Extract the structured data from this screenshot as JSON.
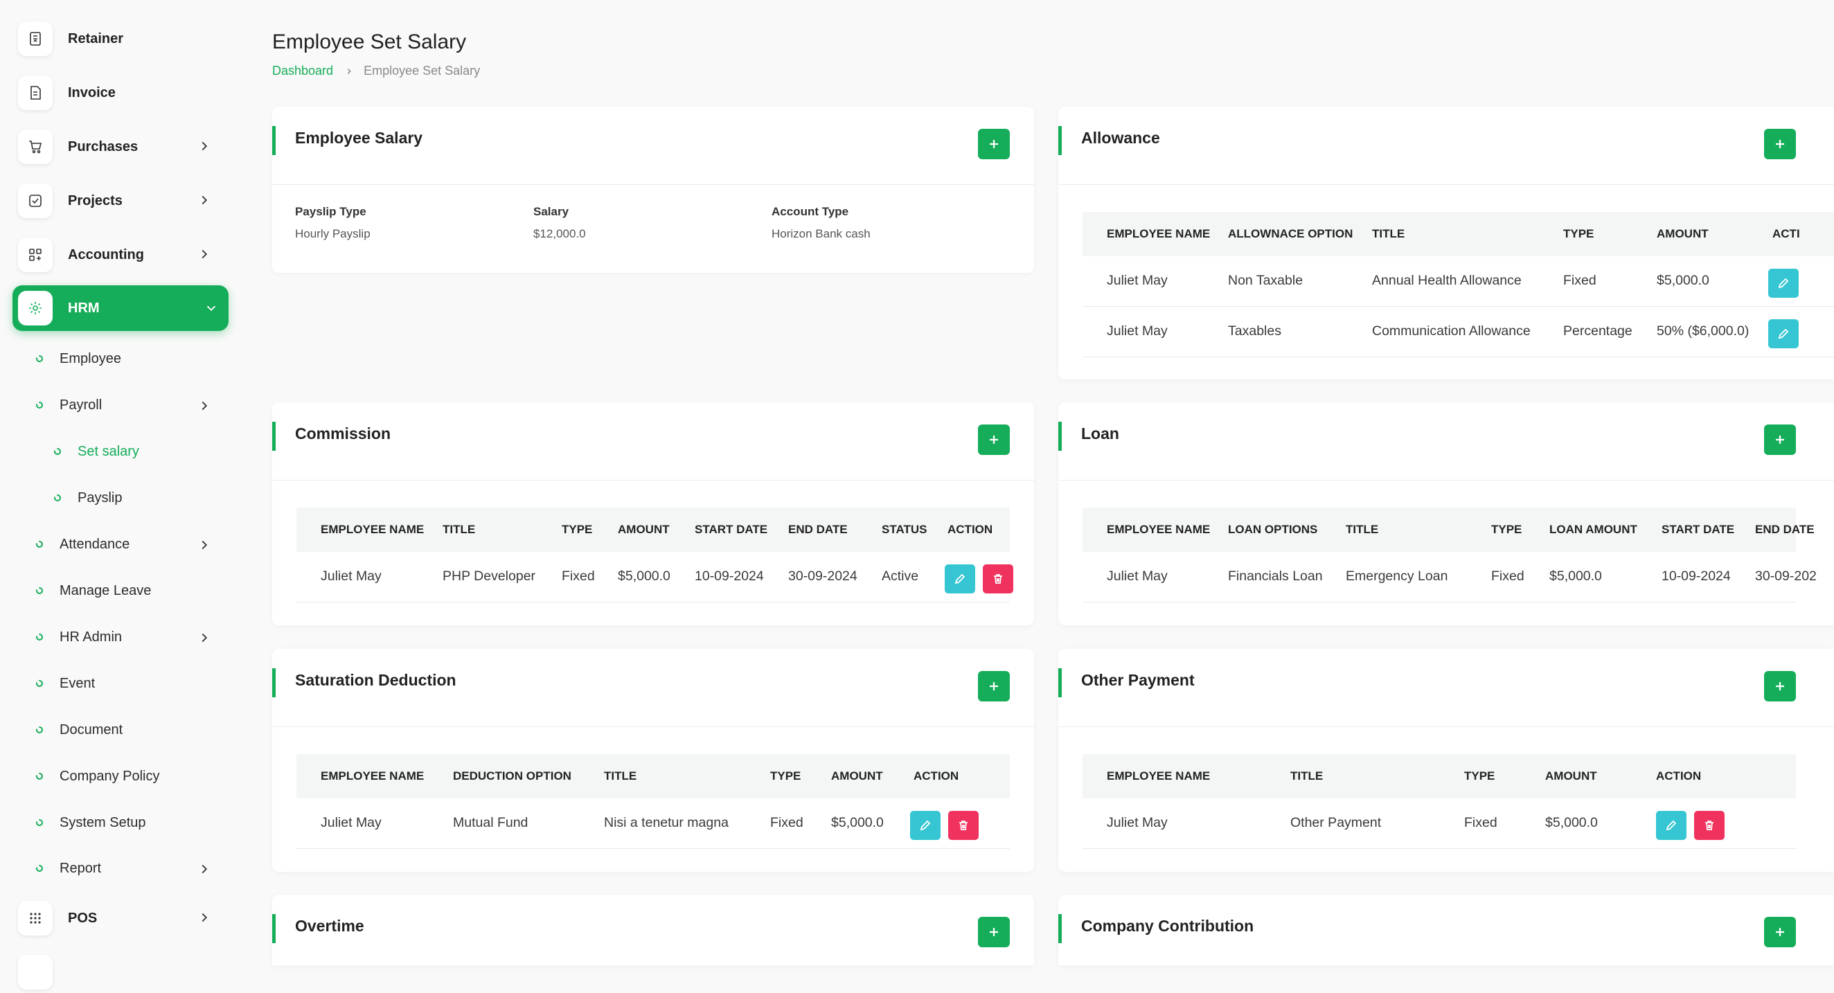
{
  "sidebar": {
    "retainer": "Retainer",
    "invoice": "Invoice",
    "purchases": "Purchases",
    "projects": "Projects",
    "accounting": "Accounting",
    "hrm": "HRM",
    "employee": "Employee",
    "payroll": "Payroll",
    "set_salary": "Set salary",
    "payslip": "Payslip",
    "attendance": "Attendance",
    "manage_leave": "Manage Leave",
    "hr_admin": "HR Admin",
    "event": "Event",
    "document": "Document",
    "company_policy": "Company Policy",
    "system_setup": "System Setup",
    "report": "Report",
    "pos": "POS"
  },
  "header": {
    "title": "Employee Set Salary",
    "breadcrumb_home": "Dashboard",
    "breadcrumb_current": "Employee Set Salary"
  },
  "employee_salary": {
    "title": "Employee Salary",
    "payslip_type_label": "Payslip Type",
    "payslip_type_value": "Hourly Payslip",
    "salary_label": "Salary",
    "salary_value": "$12,000.0",
    "account_type_label": "Account Type",
    "account_type_value": "Horizon Bank cash"
  },
  "allowance": {
    "title": "Allowance",
    "headers": [
      "EMPLOYEE NAME",
      "ALLOWNACE OPTION",
      "TITLE",
      "TYPE",
      "AMOUNT",
      "ACTI"
    ],
    "rows": [
      [
        "Juliet May",
        "Non Taxable",
        "Annual Health Allowance",
        "Fixed",
        "$5,000.0"
      ],
      [
        "Juliet May",
        "Taxables",
        "Communication Allowance",
        "Percentage",
        "50% ($6,000.0)"
      ]
    ]
  },
  "commission": {
    "title": "Commission",
    "headers": [
      "EMPLOYEE NAME",
      "TITLE",
      "TYPE",
      "AMOUNT",
      "START DATE",
      "END DATE",
      "STATUS",
      "ACTION"
    ],
    "rows": [
      [
        "Juliet May",
        "PHP Developer",
        "Fixed",
        "$5,000.0",
        "10-09-2024",
        "30-09-2024",
        "Active"
      ]
    ]
  },
  "loan": {
    "title": "Loan",
    "headers": [
      "EMPLOYEE NAME",
      "LOAN OPTIONS",
      "TITLE",
      "TYPE",
      "LOAN AMOUNT",
      "START DATE",
      "END DATE"
    ],
    "rows": [
      [
        "Juliet May",
        "Financials Loan",
        "Emergency Loan",
        "Fixed",
        "$5,000.0",
        "10-09-2024",
        "30-09-202"
      ]
    ]
  },
  "saturation_deduction": {
    "title": "Saturation Deduction",
    "headers": [
      "EMPLOYEE NAME",
      "DEDUCTION OPTION",
      "TITLE",
      "TYPE",
      "AMOUNT",
      "ACTION"
    ],
    "rows": [
      [
        "Juliet May",
        "Mutual Fund",
        "Nisi a tenetur magna",
        "Fixed",
        "$5,000.0"
      ]
    ]
  },
  "other_payment": {
    "title": "Other Payment",
    "headers": [
      "EMPLOYEE NAME",
      "TITLE",
      "TYPE",
      "AMOUNT",
      "ACTION"
    ],
    "rows": [
      [
        "Juliet May",
        "Other Payment",
        "Fixed",
        "$5,000.0"
      ]
    ]
  },
  "overtime": {
    "title": "Overtime"
  },
  "company_contribution": {
    "title": "Company Contribution"
  },
  "colors": {
    "accent": "#16ad5a",
    "edit": "#36c6d3",
    "delete": "#f0325f"
  },
  "icons": {
    "add": "plus-icon",
    "edit": "pencil-icon",
    "delete": "trash-icon"
  }
}
